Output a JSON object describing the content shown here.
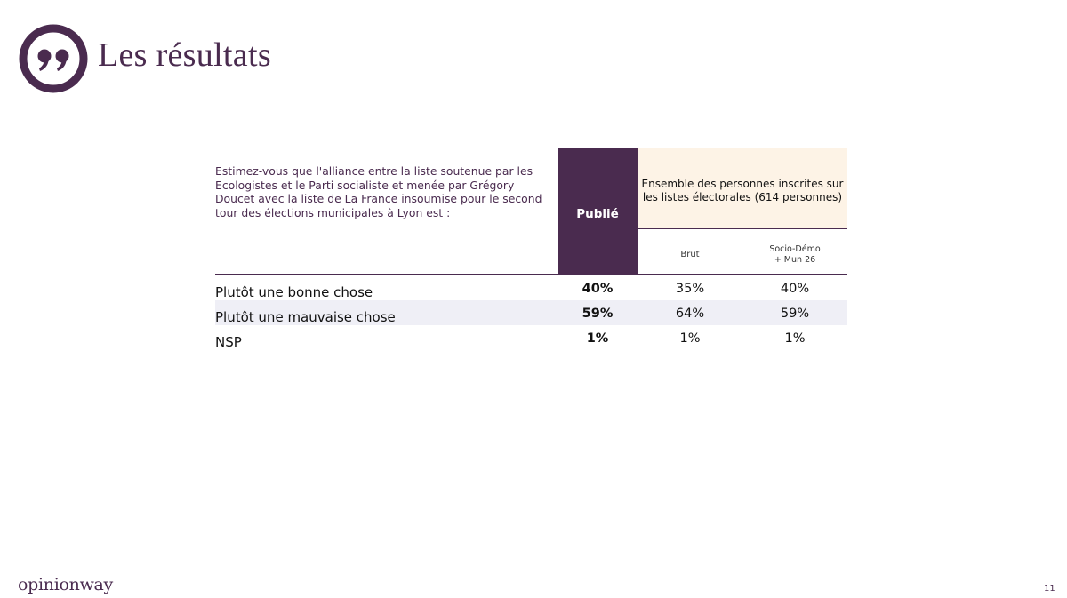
{
  "header": {
    "title": "Les résultats"
  },
  "question": {
    "text": "Estimez-vous que l'alliance entre la liste soutenue par les Ecologistes et le Parti socialiste et menée par Grégory Doucet avec la liste de La France insoumise pour le second tour des élections municipales à Lyon est :"
  },
  "table": {
    "publie_header": "Publié",
    "group_header": "Ensemble des personnes inscrites sur les listes électorales (614 personnes)",
    "sub_headers": {
      "brut": "Brut",
      "socio_line1": "Socio-Démo",
      "socio_line2": "+ Mun 26"
    },
    "rows": [
      {
        "label": "Plutôt une bonne chose",
        "publie": "40%",
        "brut": "35%",
        "socio": "40%"
      },
      {
        "label": "Plutôt une mauvaise chose",
        "publie": "59%",
        "brut": "64%",
        "socio": "59%"
      },
      {
        "label": "NSP",
        "publie": "1%",
        "brut": "1%",
        "socio": "1%"
      }
    ]
  },
  "footer": {
    "brand": "opinionway",
    "page_number": "11"
  },
  "colors": {
    "accent": "#4a2b4f",
    "header_fill": "#fdf3e6",
    "row_shade": "#efeff6"
  },
  "icons": {
    "quote_logo": "quote-icon"
  }
}
